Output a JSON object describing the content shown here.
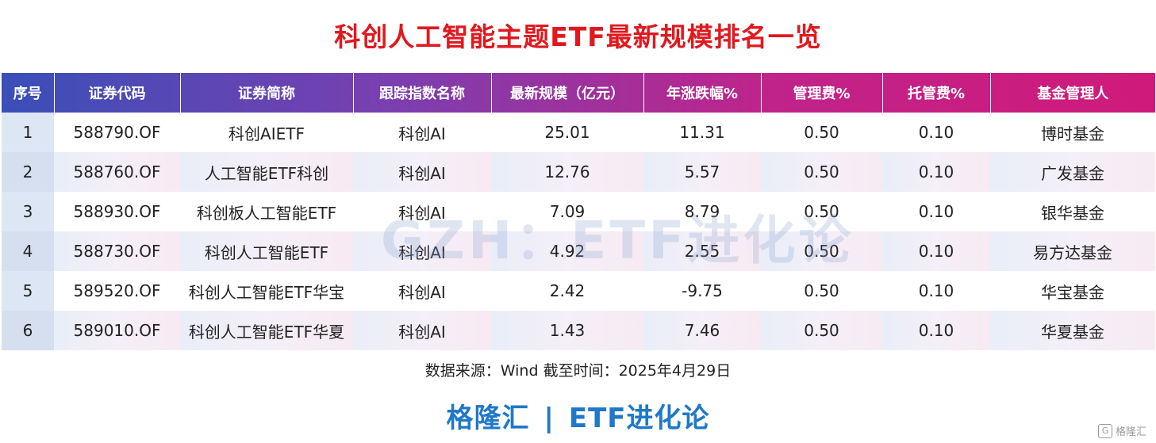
{
  "title": "科创人工智能主题ETF最新规模排名一览",
  "watermark": "GZH：ETF进化论",
  "header_gradient": [
    "#3a4fb8",
    "#7a3fb0",
    "#c0238a",
    "#d01a7a"
  ],
  "columns": [
    "序号",
    "证券代码",
    "证券简称",
    "跟踪指数名称",
    "最新规模（亿元）",
    "年涨跌幅%",
    "管理费%",
    "托管费%",
    "基金管理人"
  ],
  "rows": [
    [
      "1",
      "588790.OF",
      "科创AIETF",
      "科创AI",
      "25.01",
      "11.31",
      "0.50",
      "0.10",
      "博时基金"
    ],
    [
      "2",
      "588760.OF",
      "人工智能ETF科创",
      "科创AI",
      "12.76",
      "5.57",
      "0.50",
      "0.10",
      "广发基金"
    ],
    [
      "3",
      "588930.OF",
      "科创板人工智能ETF",
      "科创AI",
      "7.09",
      "8.79",
      "0.50",
      "0.10",
      "银华基金"
    ],
    [
      "4",
      "588730.OF",
      "科创人工智能ETF",
      "科创AI",
      "4.92",
      "2.55",
      "0.50",
      "0.10",
      "易方达基金"
    ],
    [
      "5",
      "589520.OF",
      "科创人工智能ETF华宝",
      "科创AI",
      "2.42",
      "-9.75",
      "0.50",
      "0.10",
      "华宝基金"
    ],
    [
      "6",
      "589010.OF",
      "科创人工智能ETF华夏",
      "科创AI",
      "1.43",
      "7.46",
      "0.50",
      "0.10",
      "华夏基金"
    ]
  ],
  "source": "数据来源：Wind 截至时间：2025年4月29日",
  "footer": {
    "brand": "格隆汇",
    "separator": "|",
    "channel": "ETF进化论"
  },
  "corner_mark": {
    "logo": "G",
    "text": "格隆汇"
  }
}
